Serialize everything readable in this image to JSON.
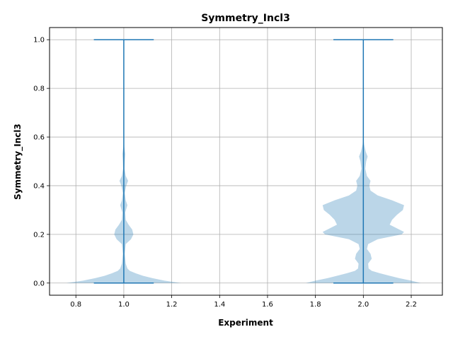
{
  "chart_data": {
    "type": "violin",
    "title": "Symmetry_Incl3",
    "xlabel": "Experiment",
    "ylabel": "Symmetry_Incl3",
    "xlim": [
      0.69,
      2.33
    ],
    "ylim": [
      -0.05,
      1.05
    ],
    "grid": true,
    "x_ticks": [
      0.8,
      1.0,
      1.2,
      1.4,
      1.6,
      1.8,
      2.0,
      2.2
    ],
    "x_tick_labels": [
      "0.8",
      "1.0",
      "1.2",
      "1.4",
      "1.6",
      "1.8",
      "2.0",
      "2.2"
    ],
    "y_ticks": [
      0.0,
      0.2,
      0.4,
      0.6,
      0.8,
      1.0
    ],
    "y_tick_labels": [
      "0.0",
      "0.2",
      "0.4",
      "0.6",
      "0.8",
      "1.0"
    ],
    "body_color": "#1f77b4",
    "body_opacity": 0.3,
    "line_color": "#1f77b4",
    "cap_halfwidth": 0.125,
    "violins": [
      {
        "position": 1.0,
        "min": 0.0,
        "max": 1.0,
        "profile": [
          [
            0.0,
            0.24
          ],
          [
            0.01,
            0.17
          ],
          [
            0.02,
            0.12
          ],
          [
            0.03,
            0.08
          ],
          [
            0.04,
            0.05
          ],
          [
            0.05,
            0.025
          ],
          [
            0.06,
            0.015
          ],
          [
            0.08,
            0.008
          ],
          [
            0.12,
            0.004
          ],
          [
            0.16,
            0.008
          ],
          [
            0.18,
            0.03
          ],
          [
            0.2,
            0.04
          ],
          [
            0.22,
            0.035
          ],
          [
            0.24,
            0.02
          ],
          [
            0.26,
            0.008
          ],
          [
            0.29,
            0.006
          ],
          [
            0.32,
            0.015
          ],
          [
            0.34,
            0.008
          ],
          [
            0.37,
            0.004
          ],
          [
            0.4,
            0.01
          ],
          [
            0.42,
            0.018
          ],
          [
            0.44,
            0.008
          ],
          [
            0.47,
            0.003
          ],
          [
            0.5,
            0.004
          ],
          [
            0.53,
            0.006
          ],
          [
            0.56,
            0.002
          ],
          [
            0.6,
            0.0005
          ],
          [
            1.0,
            0.0
          ]
        ]
      },
      {
        "position": 2.0,
        "min": 0.0,
        "max": 1.0,
        "profile": [
          [
            0.0,
            0.24
          ],
          [
            0.01,
            0.2
          ],
          [
            0.02,
            0.15
          ],
          [
            0.03,
            0.11
          ],
          [
            0.04,
            0.07
          ],
          [
            0.05,
            0.035
          ],
          [
            0.06,
            0.022
          ],
          [
            0.08,
            0.02
          ],
          [
            0.1,
            0.035
          ],
          [
            0.12,
            0.03
          ],
          [
            0.14,
            0.015
          ],
          [
            0.16,
            0.02
          ],
          [
            0.18,
            0.06
          ],
          [
            0.2,
            0.16
          ],
          [
            0.21,
            0.17
          ],
          [
            0.22,
            0.15
          ],
          [
            0.24,
            0.11
          ],
          [
            0.26,
            0.12
          ],
          [
            0.28,
            0.14
          ],
          [
            0.3,
            0.165
          ],
          [
            0.32,
            0.17
          ],
          [
            0.34,
            0.12
          ],
          [
            0.36,
            0.06
          ],
          [
            0.38,
            0.03
          ],
          [
            0.4,
            0.025
          ],
          [
            0.42,
            0.03
          ],
          [
            0.44,
            0.015
          ],
          [
            0.47,
            0.008
          ],
          [
            0.5,
            0.012
          ],
          [
            0.52,
            0.018
          ],
          [
            0.54,
            0.01
          ],
          [
            0.57,
            0.003
          ],
          [
            0.6,
            0.0005
          ],
          [
            1.0,
            0.0
          ]
        ]
      }
    ]
  }
}
